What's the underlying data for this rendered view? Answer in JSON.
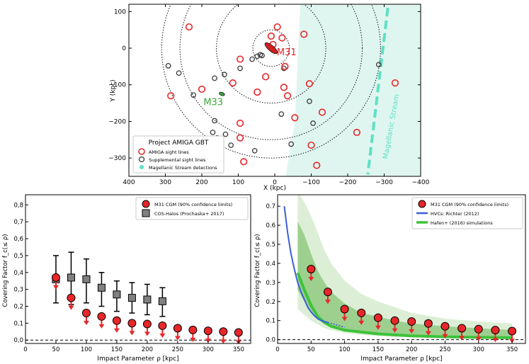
{
  "chart_data": [
    {
      "type": "scatter",
      "xlabel": "X (kpc)",
      "ylabel": "Y (kpc)",
      "xlim": [
        400,
        -400
      ],
      "ylim": [
        -350,
        120
      ],
      "xticks": [
        "400",
        "300",
        "200",
        "100",
        "0",
        "−100",
        "−200",
        "−300",
        "−400"
      ],
      "xtick_values": [
        400,
        300,
        200,
        100,
        0,
        -100,
        -200,
        -300,
        -400
      ],
      "yticks": [
        "100",
        "0",
        "−100",
        "−200",
        "−300"
      ],
      "ytick_values": [
        100,
        0,
        -100,
        -200,
        -300
      ],
      "circle_radii": [
        50,
        150,
        250,
        300
      ],
      "legend_title": "Project AMIGA GBT",
      "legend_placement": "bottom-left",
      "legend": [
        "AMIGA sight lines",
        "Supplemental sight lines",
        "Magellanic Stream detections"
      ],
      "labels": {
        "m31": "M31",
        "m33": "M33",
        "stream": "Magellanic Stream"
      },
      "colors": {
        "amiga": "#e8262a",
        "supplemental": "#3a3a3a",
        "stream_fill": "#dff6f0",
        "stream_line": "#5ee0c4",
        "m33": "#3aaa35"
      },
      "amiga_points": [
        [
          235,
          58
        ],
        [
          -7,
          58
        ],
        [
          -80,
          38
        ],
        [
          10,
          33
        ],
        [
          -20,
          28
        ],
        [
          5,
          10
        ],
        [
          95,
          -30
        ],
        [
          -28,
          -50
        ],
        [
          25,
          -78
        ],
        [
          115,
          -95
        ],
        [
          -25,
          -107
        ],
        [
          -95,
          -97
        ],
        [
          48,
          -120
        ],
        [
          -35,
          -130
        ],
        [
          285,
          -130
        ],
        [
          200,
          -112
        ],
        [
          -55,
          -190
        ],
        [
          -130,
          -175
        ],
        [
          95,
          -205
        ],
        [
          -225,
          -230
        ],
        [
          -330,
          -95
        ],
        [
          95,
          -245
        ],
        [
          -100,
          -265
        ],
        [
          -115,
          -320
        ],
        [
          85,
          -310
        ]
      ],
      "supplemental_points": [
        [
          292,
          -48
        ],
        [
          263,
          -68
        ],
        [
          223,
          -128
        ],
        [
          165,
          -82
        ],
        [
          138,
          -72
        ],
        [
          95,
          -55
        ],
        [
          62,
          -30
        ],
        [
          48,
          -22
        ],
        [
          40,
          -18
        ],
        [
          35,
          -20
        ],
        [
          -25,
          -55
        ],
        [
          -95,
          -145
        ],
        [
          -18,
          -180
        ],
        [
          165,
          -198
        ],
        [
          170,
          -230
        ],
        [
          135,
          -235
        ],
        [
          120,
          -265
        ],
        [
          158,
          -245
        ],
        [
          55,
          -280
        ],
        [
          -45,
          -262
        ],
        [
          -105,
          -205
        ],
        [
          -285,
          -45
        ]
      ],
      "m31": {
        "x": 10,
        "y": 0
      },
      "m33": {
        "x": 145,
        "y": -125
      }
    },
    {
      "type": "scatter",
      "xlabel": "Impact Parameter ρ [kpc]",
      "ylabel": "Covering Factor f_c(≤ ρ)",
      "xlim": [
        0,
        370
      ],
      "ylim": [
        -0.02,
        0.86
      ],
      "xticks": [
        "0",
        "50",
        "100",
        "150",
        "200",
        "250",
        "300",
        "350"
      ],
      "xtick_values": [
        0,
        50,
        100,
        150,
        200,
        250,
        300,
        350
      ],
      "yticks": [
        "0,0",
        "0,1",
        "0,2",
        "0,3",
        "0,4",
        "0,5",
        "0,6",
        "0,7",
        "0,8"
      ],
      "ytick_values": [
        0,
        0.1,
        0.2,
        0.3,
        0.4,
        0.5,
        0.6,
        0.7,
        0.8
      ],
      "legend_placement": "top-right",
      "series": [
        {
          "name": "M31 CGM (90% confidence limits)",
          "marker": "circle-upper-limit",
          "color": "#e8262a",
          "x": [
            50,
            75,
            100,
            125,
            150,
            175,
            200,
            225,
            250,
            275,
            300,
            325,
            350
          ],
          "values": [
            0.37,
            0.25,
            0.16,
            0.14,
            0.115,
            0.1,
            0.095,
            0.085,
            0.07,
            0.06,
            0.055,
            0.05,
            0.045
          ]
        },
        {
          "name": "COS-Halos (Prochaska+ 2017)",
          "marker": "square-errorbar",
          "color": "#808080",
          "x": [
            50,
            75,
            100,
            125,
            150,
            175,
            200,
            225
          ],
          "values": [
            0.36,
            0.37,
            0.36,
            0.31,
            0.27,
            0.25,
            0.24,
            0.23
          ],
          "err_low": [
            0.22,
            0.21,
            0.22,
            0.2,
            0.17,
            0.16,
            0.15,
            0.14
          ],
          "err_high": [
            0.5,
            0.52,
            0.48,
            0.4,
            0.35,
            0.34,
            0.33,
            0.31
          ]
        }
      ]
    },
    {
      "type": "line",
      "xlabel": "Impact Parameter ρ [kpc]",
      "ylabel": "Covering Factor f_c(≤ ρ)",
      "xlim": [
        0,
        370
      ],
      "ylim": [
        -0.02,
        0.76
      ],
      "xticks": [
        "0",
        "50",
        "100",
        "150",
        "200",
        "250",
        "300",
        "350"
      ],
      "xtick_values": [
        0,
        50,
        100,
        150,
        200,
        250,
        300,
        350
      ],
      "yticks": [
        "0.0",
        "0.1",
        "0.2",
        "0.3",
        "0.4",
        "0.5",
        "0.6",
        "0.7"
      ],
      "ytick_values": [
        0,
        0.1,
        0.2,
        0.3,
        0.4,
        0.5,
        0.6,
        0.7
      ],
      "legend_placement": "top-right",
      "series": [
        {
          "name": "M31 CGM (90% confidence limits)",
          "marker": "circle-upper-limit",
          "color": "#e8262a",
          "x": [
            50,
            75,
            100,
            125,
            150,
            175,
            200,
            225,
            250,
            275,
            300,
            325,
            350
          ],
          "values": [
            0.37,
            0.25,
            0.16,
            0.14,
            0.115,
            0.1,
            0.095,
            0.085,
            0.07,
            0.06,
            0.055,
            0.05,
            0.045
          ]
        },
        {
          "name": "HVCs: Richter (2012)",
          "color": "#3a5fd8",
          "x": [
            10,
            15,
            20,
            25,
            30,
            35,
            40,
            45,
            50,
            55,
            60,
            65,
            70,
            75
          ],
          "values": [
            0.7,
            0.56,
            0.45,
            0.37,
            0.3,
            0.25,
            0.21,
            0.17,
            0.145,
            0.125,
            0.11,
            0.1,
            0.095,
            0.09
          ],
          "dotted_x": [
            75,
            80,
            85,
            90,
            95,
            100
          ],
          "dotted_values": [
            0.09,
            0.085,
            0.08,
            0.075,
            0.07,
            0.065
          ]
        },
        {
          "name": "Hafen+ (2016) simulations",
          "color": "#3ec23a",
          "x": [
            30,
            40,
            50,
            60,
            70,
            80,
            100,
            125,
            150,
            175,
            200,
            250,
            300,
            350
          ],
          "values": [
            0.35,
            0.26,
            0.18,
            0.12,
            0.09,
            0.07,
            0.05,
            0.04,
            0.03,
            0.025,
            0.02,
            0.015,
            0.012,
            0.01
          ],
          "band_outer_low": [
            0.16,
            0.13,
            0.1,
            0.08,
            0.06,
            0.05,
            0.035,
            0.025,
            0.02,
            0.015,
            0.012,
            0.01,
            0.008,
            0.006
          ],
          "band_outer_high": [
            0.78,
            0.72,
            0.65,
            0.56,
            0.47,
            0.4,
            0.31,
            0.24,
            0.2,
            0.17,
            0.14,
            0.11,
            0.095,
            0.085
          ],
          "band_inner_low": [
            0.26,
            0.2,
            0.15,
            0.11,
            0.085,
            0.065,
            0.045,
            0.035,
            0.028,
            0.022,
            0.018,
            0.014,
            0.011,
            0.009
          ],
          "band_inner_high": [
            0.62,
            0.55,
            0.45,
            0.36,
            0.3,
            0.25,
            0.19,
            0.14,
            0.12,
            0.1,
            0.085,
            0.07,
            0.06,
            0.05
          ]
        }
      ]
    }
  ]
}
